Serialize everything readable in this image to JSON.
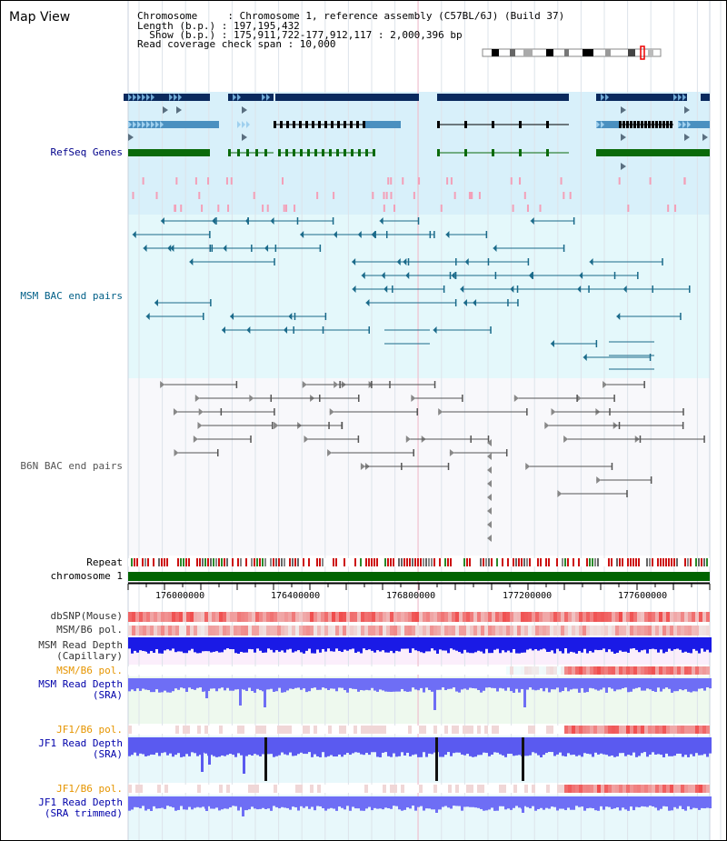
{
  "header": {
    "title": "Map View",
    "info_lines": [
      "Chromosome     : Chromosome 1, reference assembly (C57BL/6J) (Build 37)",
      "Length (b.p.) : 197,195,432",
      "  Show (b.p.) : 175,911,722-177,912,117 : 2,000,396 bp",
      "Read coverage check span : 10,000"
    ]
  },
  "tracks": {
    "refseq": "RefSeq Genes",
    "msm_bac": "MSM BAC end pairs",
    "b6n_bac": "B6N BAC end pairs",
    "repeat": "Repeat",
    "chromosome": "chromosome 1",
    "dbsnp": "dbSNP(Mouse)",
    "msm_pol_1": "MSM/B6 pol.",
    "msm_depth_cap_1": "MSM Read Depth",
    "msm_depth_cap_2": "(Capillary)",
    "msm_pol_2": "MSM/B6 pol.",
    "msm_depth_sra_1": "MSM Read Depth",
    "msm_depth_sra_2": "(SRA)",
    "jf1_pol_1": "JF1/B6 pol.",
    "jf1_depth_sra_1": "JF1 Read Depth",
    "jf1_depth_sra_2": "(SRA)",
    "jf1_pol_2": "JF1/B6 pol.",
    "jf1_depth_trim_1": "JF1 Read Depth",
    "jf1_depth_trim_2": "(SRA trimmed)"
  },
  "axis": {
    "ticks": [
      "176000000",
      "176400000",
      "176800000",
      "177200000",
      "177600000"
    ]
  },
  "colors": {
    "refseq_label": "#00008b",
    "msm_bac_label": "#005f87",
    "b6n_bac_label": "#555555",
    "pol_label_orange": "#e69500",
    "depth_label_blue": "#0000aa",
    "chromosome_bar": "#006400",
    "refseq_bg": "#d8f0fa",
    "msm_bac_bg": "#e4f8fb",
    "b6n_bac_bg": "#f8f8fb"
  }
}
